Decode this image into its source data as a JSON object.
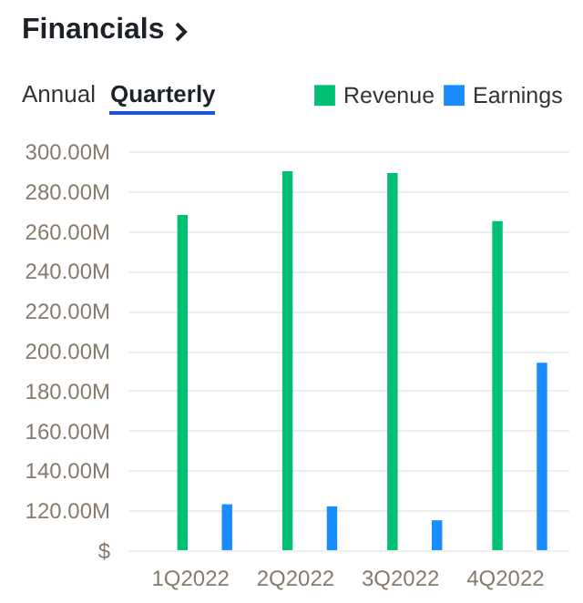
{
  "chart_data": {
    "type": "bar",
    "title": "Financials",
    "annotations": [
      "Annual",
      "Quarterly"
    ],
    "categories": [
      "1Q2022",
      "2Q2022",
      "3Q2022",
      "4Q2022"
    ],
    "series": [
      {
        "name": "Revenue",
        "color": "#00c073",
        "values": [
          268,
          290,
          289,
          265
        ]
      },
      {
        "name": "Earnings",
        "color": "#1a8cff",
        "values": [
          123,
          122,
          115,
          194
        ]
      }
    ],
    "ylim": [
      100,
      300
    ],
    "yticks": [
      {
        "value": 100,
        "label": "$"
      },
      {
        "value": 120,
        "label": "120.00M"
      },
      {
        "value": 140,
        "label": "140.00M"
      },
      {
        "value": 160,
        "label": "160.00M"
      },
      {
        "value": 180,
        "label": "180.00M"
      },
      {
        "value": 200,
        "label": "200.00M"
      },
      {
        "value": 220,
        "label": "220.00M"
      },
      {
        "value": 240,
        "label": "240.00M"
      },
      {
        "value": 260,
        "label": "260.00M"
      },
      {
        "value": 280,
        "label": "280.00M"
      },
      {
        "value": 300,
        "label": "300.00M"
      }
    ],
    "grid": "y",
    "legend": "top right"
  }
}
